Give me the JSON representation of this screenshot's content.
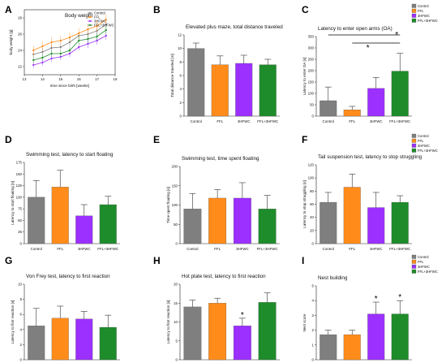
{
  "charts": [
    {
      "panel": "A",
      "type": "line",
      "title": "Body weight",
      "xlabel": "time since birth [weeks]",
      "ylabel": "body weight [g]",
      "xlim": [
        13,
        18
      ],
      "ylim": [
        21,
        29
      ],
      "xticks": [
        13,
        14,
        15,
        16,
        17,
        18
      ],
      "yticks": [
        22,
        24,
        26,
        28
      ],
      "x": [
        13.5,
        14,
        14.5,
        15,
        15.5,
        16,
        16.5,
        17,
        17.5
      ],
      "series": [
        {
          "name": "Control",
          "color": "#7f7f7f",
          "values": [
            23.5,
            23.8,
            24.3,
            24.4,
            25.0,
            25.8,
            26.0,
            26.4,
            27.2
          ],
          "errors": [
            0.5,
            0.5,
            0.5,
            0.5,
            0.5,
            0.5,
            0.5,
            0.6,
            0.6
          ]
        },
        {
          "name": "FFL",
          "color": "#ff8c1a",
          "values": [
            24.0,
            24.5,
            25.0,
            25.2,
            25.6,
            26.1,
            26.6,
            27.0,
            27.8
          ],
          "errors": [
            0.6,
            0.6,
            0.6,
            0.6,
            0.6,
            0.6,
            0.7,
            0.7,
            0.7
          ]
        },
        {
          "name": "3HFWC",
          "color": "#9b30ff",
          "values": [
            22.2,
            22.5,
            23.0,
            23.2,
            23.6,
            24.4,
            24.8,
            25.2,
            25.8
          ],
          "errors": [
            0.4,
            0.4,
            0.4,
            0.4,
            0.4,
            0.4,
            0.5,
            0.5,
            0.5
          ]
        },
        {
          "name": "FFL+3HFWC",
          "color": "#1e8c2a",
          "values": [
            22.8,
            23.1,
            23.6,
            23.6,
            24.0,
            25.2,
            25.4,
            25.7,
            26.5
          ],
          "errors": [
            0.4,
            0.4,
            0.4,
            0.4,
            0.4,
            0.5,
            0.5,
            0.5,
            0.6
          ]
        }
      ]
    },
    {
      "panel": "B",
      "type": "bar",
      "title": "Elevated plus maze, total distance traveled",
      "ylabel": "Total distance traveled [m]",
      "categories": [
        "Control",
        "FFL",
        "3HFWC",
        "FFL+3HFWC"
      ],
      "values": [
        10.0,
        7.6,
        7.8,
        7.6
      ],
      "errors": [
        0.8,
        1.3,
        1.2,
        0.8
      ],
      "ylim": [
        0,
        12
      ],
      "yticks": [
        0,
        2,
        4,
        6,
        8,
        10,
        12
      ]
    },
    {
      "panel": "C",
      "type": "bar",
      "title": "Latency to enter open arms (OA)",
      "ylabel": "Latency to enter OA [s]",
      "categories": [
        "Control",
        "FFL",
        "3HFWC",
        "FFL+3HFWC"
      ],
      "values": [
        68,
        28,
        122,
        198
      ],
      "errors": [
        60,
        15,
        48,
        78
      ],
      "ylim": [
        0,
        350
      ],
      "yticks": [
        0,
        50,
        100,
        150,
        200,
        250,
        300,
        350
      ],
      "legend": [
        "Control",
        "FFL",
        "3HFWC",
        "FFL+3HFWC"
      ],
      "significance": [
        "*",
        "*"
      ]
    },
    {
      "panel": "D",
      "type": "bar",
      "title": "Swimming test, latency to start floating",
      "ylabel": "Latency to start floating [s]",
      "categories": [
        "Control",
        "FFL",
        "3HFWC",
        "FFL+3HFWC"
      ],
      "values": [
        100,
        122,
        60,
        84
      ],
      "errors": [
        36,
        36,
        24,
        18
      ],
      "ylim": [
        0,
        175
      ],
      "yticks": [
        0,
        25,
        50,
        75,
        100,
        125,
        150,
        175
      ]
    },
    {
      "panel": "E",
      "type": "bar",
      "title": "Swimming test, time spent floating",
      "ylabel": "Time spent floating [s]",
      "categories": [
        "Control",
        "FFL",
        "3HFWC",
        "FFL+3HFWC"
      ],
      "values": [
        90,
        118,
        118,
        90
      ],
      "errors": [
        40,
        22,
        40,
        35
      ],
      "ylim": [
        0,
        200
      ],
      "yticks": [
        0,
        50,
        100,
        150,
        200
      ]
    },
    {
      "panel": "F",
      "type": "bar",
      "title": "Tail suspension test, latency to stop struggling",
      "ylabel": "Latency to stop struggling [s]",
      "categories": [
        "Control",
        "FFL",
        "3HFWC",
        "FFL+3HFWC"
      ],
      "values": [
        63,
        86,
        55,
        63
      ],
      "errors": [
        15,
        20,
        23,
        10
      ],
      "ylim": [
        0,
        120
      ],
      "yticks": [
        0,
        20,
        40,
        60,
        80,
        100,
        120
      ],
      "legend": [
        "Control",
        "FFL",
        "3HFWC",
        "FFL+3HFWC"
      ]
    },
    {
      "panel": "G",
      "type": "bar",
      "title": "Von Frey test, latency to first reaction",
      "ylabel": "Latency to first reaction [s]",
      "categories": [
        "Control",
        "FFL",
        "3HFWC",
        "FFL+3HFWC"
      ],
      "values": [
        4.5,
        5.5,
        5.4,
        4.3
      ],
      "errors": [
        2.3,
        1.6,
        1.0,
        1.6
      ],
      "ylim": [
        0,
        10
      ],
      "yticks": [
        0,
        2,
        4,
        6,
        8,
        10
      ]
    },
    {
      "panel": "H",
      "type": "bar",
      "title": "Hot plate test, latency to first reaction",
      "ylabel": "Latency to first reaction [s]",
      "categories": [
        "Control",
        "FFL",
        "3HFWC",
        "FFL+3HFWC"
      ],
      "values": [
        14.0,
        15.0,
        9.0,
        15.2
      ],
      "errors": [
        1.8,
        1.3,
        2.0,
        2.5
      ],
      "ylim": [
        0,
        20
      ],
      "yticks": [
        0,
        5,
        10,
        15,
        20
      ],
      "significance": [
        "*"
      ]
    },
    {
      "panel": "I",
      "type": "bar",
      "title": "Nest building",
      "ylabel": "Nest score",
      "categories": [
        "Control",
        "FFL",
        "3HFWC",
        "FFL+3HFWC"
      ],
      "values": [
        1.7,
        1.7,
        3.1,
        3.1
      ],
      "errors": [
        0.3,
        0.3,
        0.8,
        0.9
      ],
      "ylim": [
        0,
        5
      ],
      "yticks": [
        0,
        1,
        2,
        3,
        4,
        5
      ],
      "legend": [
        "Control",
        "FFL",
        "3HFWC",
        "FFL+3HFWC"
      ],
      "significance": [
        "*",
        "*"
      ]
    }
  ],
  "colors": {
    "Control": "#7f7f7f",
    "FFL": "#ff8c1a",
    "3HFWC": "#9b30ff",
    "FFL+3HFWC": "#1e8c2a"
  }
}
